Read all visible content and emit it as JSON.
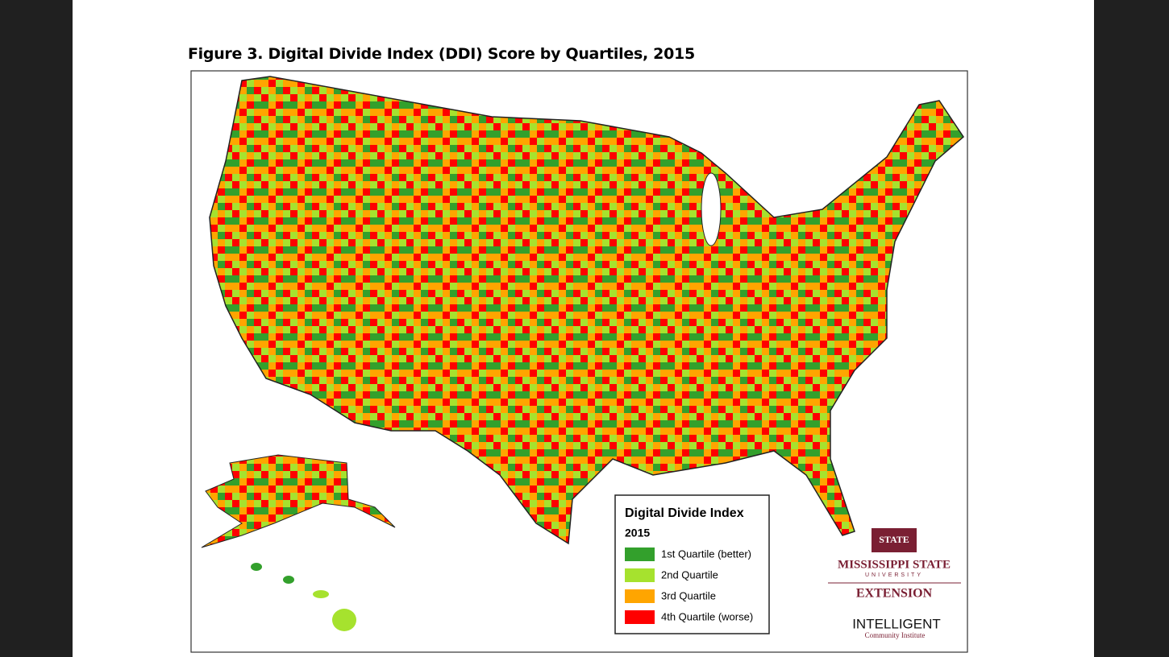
{
  "figure": {
    "title": "Figure 3. Digital Divide Index (DDI) Score by Quartiles, 2015"
  },
  "legend": {
    "title": "Digital Divide Index",
    "subtitle": "2015",
    "items": [
      {
        "label": "1st Quartile (better)",
        "color": "#33a02c"
      },
      {
        "label": "2nd Quartile",
        "color": "#a6e22e"
      },
      {
        "label": "3rd Quartile",
        "color": "#ffa500"
      },
      {
        "label": "4th Quartile (worse)",
        "color": "#ff0000"
      }
    ]
  },
  "logos": {
    "badge": "STATE",
    "university": "MISSISSIPPI STATE",
    "university_sub": "UNIVERSITY",
    "extension": "EXTENSION",
    "partner": "INTELLIGENT",
    "partner_sub": "Community Institute"
  }
}
